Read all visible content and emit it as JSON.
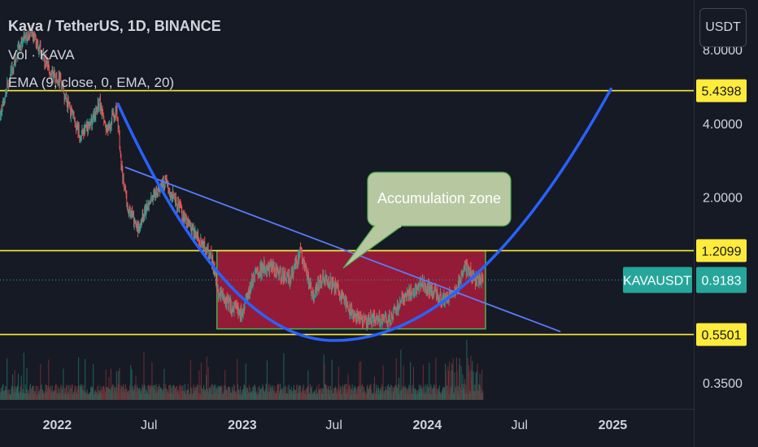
{
  "header": {
    "title": "Kava / TetherUS, 1D, BINANCE",
    "volume": "Vol · KAVA",
    "ema": "EMA (9, close, 0, EMA, 20)"
  },
  "price_axis_unit": "USDT",
  "colors": {
    "background": "#161a25",
    "up": "#26a69a",
    "down": "#ef5350",
    "level_line": "#ffeb3b",
    "curve": "#2962ff",
    "trendline": "#5b7cfa",
    "zone_fill": "#b71c3c",
    "zone_border": "#4caf50",
    "callout": "#b7c7a0",
    "current_price": "#26a69a"
  },
  "chart_data": {
    "type": "line",
    "title": "Kava / TetherUS, 1D, BINANCE",
    "y_scale": "log",
    "ylim": [
      0.28,
      12.0
    ],
    "xlim": [
      "2021-09-10",
      "2025-05-20"
    ],
    "grid": false,
    "x_ticks": [
      {
        "label": "2022",
        "date": "2022-01-01"
      },
      {
        "label": "Jul",
        "date": "2022-07-01"
      },
      {
        "label": "2023",
        "date": "2023-01-01"
      },
      {
        "label": "Jul",
        "date": "2023-07-01"
      },
      {
        "label": "2024",
        "date": "2024-01-01"
      },
      {
        "label": "Jul",
        "date": "2024-07-01"
      },
      {
        "label": "2025",
        "date": "2025-01-01"
      }
    ],
    "y_ticks": [
      {
        "label": "8.0000",
        "value": 8.0
      },
      {
        "label": "4.0000",
        "value": 4.0
      },
      {
        "label": "2.0000",
        "value": 2.0
      },
      {
        "label": "0.3500",
        "value": 0.35
      }
    ],
    "series": [
      {
        "x": [
          "2021-09-10",
          "2021-10-01",
          "2021-10-20",
          "2021-11-10",
          "2021-12-01",
          "2021-12-20",
          "2022-01-05",
          "2022-01-25",
          "2022-02-15",
          "2022-03-05",
          "2022-03-25",
          "2022-04-10",
          "2022-04-28",
          "2022-05-08",
          "2022-05-20",
          "2022-06-10",
          "2022-07-05",
          "2022-08-01",
          "2022-08-25",
          "2022-09-15",
          "2022-10-10",
          "2022-11-01",
          "2022-11-15",
          "2022-12-10",
          "2022-12-31",
          "2023-01-25",
          "2023-02-15",
          "2023-03-10",
          "2023-04-05",
          "2023-04-25",
          "2023-05-20",
          "2023-06-10",
          "2023-07-05",
          "2023-08-01",
          "2023-08-25",
          "2023-09-20",
          "2023-10-15",
          "2023-11-05",
          "2023-11-25",
          "2023-12-20",
          "2024-01-10",
          "2024-02-01",
          "2024-02-25",
          "2024-03-15",
          "2024-04-05",
          "2024-04-20"
        ],
        "y": [
          4.2,
          6.5,
          8.3,
          9.5,
          7.8,
          6.4,
          6.0,
          4.6,
          3.6,
          3.9,
          4.9,
          3.7,
          4.6,
          2.6,
          1.8,
          1.5,
          2.0,
          2.3,
          1.9,
          1.55,
          1.3,
          1.15,
          0.82,
          0.72,
          0.68,
          0.95,
          1.05,
          1.0,
          0.92,
          1.2,
          0.8,
          0.95,
          0.85,
          0.7,
          0.62,
          0.64,
          0.62,
          0.72,
          0.8,
          0.88,
          0.84,
          0.76,
          0.82,
          1.05,
          0.92,
          0.9183
        ]
      }
    ],
    "volume_panel": true,
    "annotations": {
      "horizontal_levels": [
        {
          "label": "5.4398",
          "value": 5.4398
        },
        {
          "label": "1.2099",
          "value": 1.2099
        },
        {
          "label": "0.5501",
          "value": 0.5501
        }
      ],
      "current_price": {
        "symbol": "KAVAUSDT",
        "label": "0.9183",
        "value": 0.9183
      },
      "zone": {
        "label": "Accumulation zone",
        "x_start": "2022-11-12",
        "x_end": "2024-04-25",
        "y_low": 0.58,
        "y_high": 1.2099
      },
      "trendline": {
        "x_start": "2022-05-15",
        "y_start": 2.65,
        "x_end": "2024-09-20",
        "y_end": 0.565
      },
      "cup_curve": {
        "x_start": "2022-05-01",
        "y_start": 4.8,
        "x_bottom": "2023-07-01",
        "y_bottom": 0.52,
        "x_end": "2025-01-01",
        "y_end": 5.7
      }
    }
  }
}
